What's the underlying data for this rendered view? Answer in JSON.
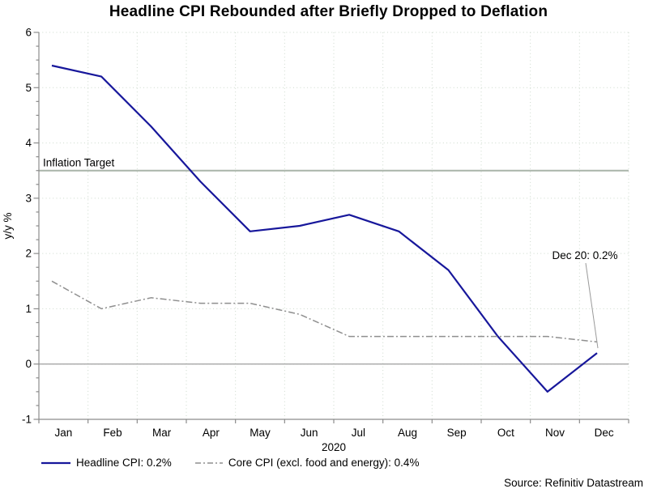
{
  "source_note": "Source: Refinitiv Datastream",
  "chart_data": {
    "type": "line",
    "title": "Headline CPI Rebounded after Briefly Dropped to Deflation",
    "ylabel": "y/y %",
    "xlabel": "2020",
    "ylim": [
      -1,
      6
    ],
    "y_tick_step": 1,
    "y_minor_tick_step": 0.25,
    "grid": true,
    "legend_position": "bottom",
    "categories": [
      "Jan",
      "Feb",
      "Mar",
      "Apr",
      "May",
      "Jun",
      "Jul",
      "Aug",
      "Sep",
      "Oct",
      "Nov",
      "Dec"
    ],
    "series": [
      {
        "name": "Headline CPI: 0.2%",
        "key": "headline-cpi",
        "color": "#17179b",
        "line_style": "solid",
        "line_width": 2.2,
        "values": [
          5.4,
          5.2,
          4.3,
          3.3,
          2.4,
          2.5,
          2.7,
          2.4,
          1.7,
          0.5,
          -0.5,
          0.2
        ]
      },
      {
        "name": "Core CPI (excl. food and energy): 0.4%",
        "key": "core-cpi",
        "color": "#8f8f8f",
        "line_style": "dashdot",
        "line_width": 1.5,
        "values": [
          1.5,
          1.0,
          1.2,
          1.1,
          1.1,
          0.9,
          0.5,
          0.5,
          0.5,
          0.5,
          0.5,
          0.4
        ]
      }
    ],
    "reference_lines": [
      {
        "label": "Inflation Target",
        "value": 3.5,
        "color": "#a9b4a9",
        "width": 2
      },
      {
        "label": "",
        "value": 0,
        "color": "#a6a6a6",
        "width": 1.4
      }
    ],
    "annotation": {
      "text": "Dec 20: 0.2%",
      "month_index": 11,
      "value": 0.2
    },
    "colors": {
      "grid": "#ccd9cc",
      "axis": "#8c8c8c",
      "text": "#000000"
    }
  }
}
